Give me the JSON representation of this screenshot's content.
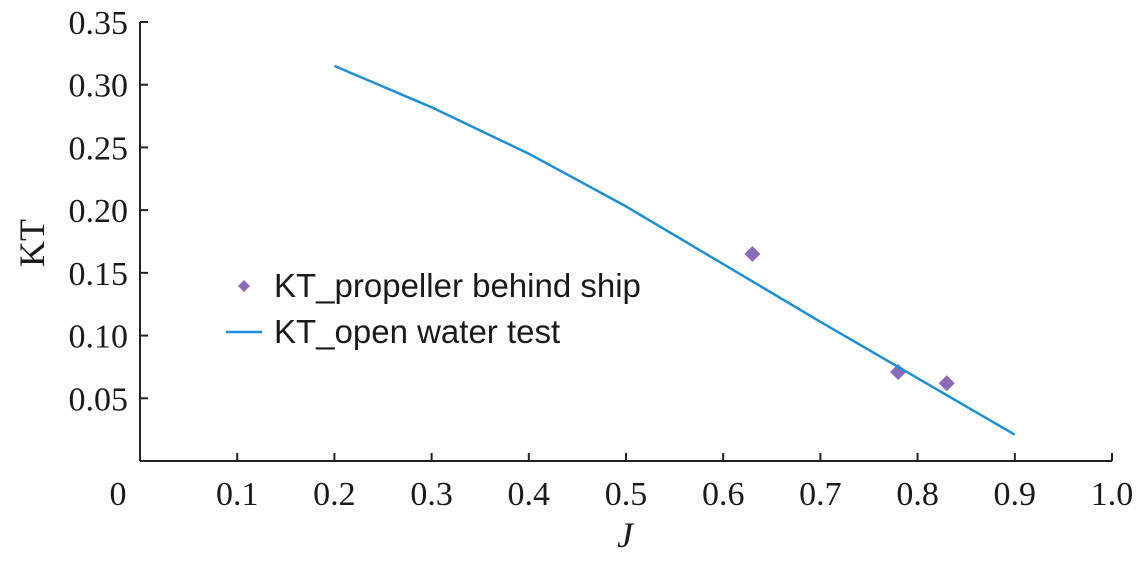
{
  "chart_data": {
    "type": "line",
    "title": "",
    "xlabel": "J",
    "ylabel": "KT",
    "xlim": [
      0,
      1.0
    ],
    "ylim": [
      0,
      0.35
    ],
    "x_ticks": [
      "0",
      "0.1",
      "0.2",
      "0.3",
      "0.4",
      "0.5",
      "0.6",
      "0.7",
      "0.8",
      "0.9",
      "1.0"
    ],
    "y_ticks": [
      "0.05",
      "0.10",
      "0.15",
      "0.20",
      "0.25",
      "0.30",
      "0.35"
    ],
    "grid": false,
    "legend_position": "center-left",
    "series": [
      {
        "name": "KT_propeller behind ship",
        "kind": "scatter",
        "marker": "diamond",
        "color": "#8b6bb8",
        "x": [
          0.63,
          0.78,
          0.83
        ],
        "y": [
          0.165,
          0.071,
          0.062
        ]
      },
      {
        "name": "KT_open water test",
        "kind": "line",
        "color": "#1f8fd8",
        "x": [
          0.2,
          0.3,
          0.4,
          0.5,
          0.6,
          0.7,
          0.8,
          0.9
        ],
        "y": [
          0.315,
          0.282,
          0.245,
          0.203,
          0.157,
          0.111,
          0.066,
          0.021
        ]
      }
    ]
  }
}
